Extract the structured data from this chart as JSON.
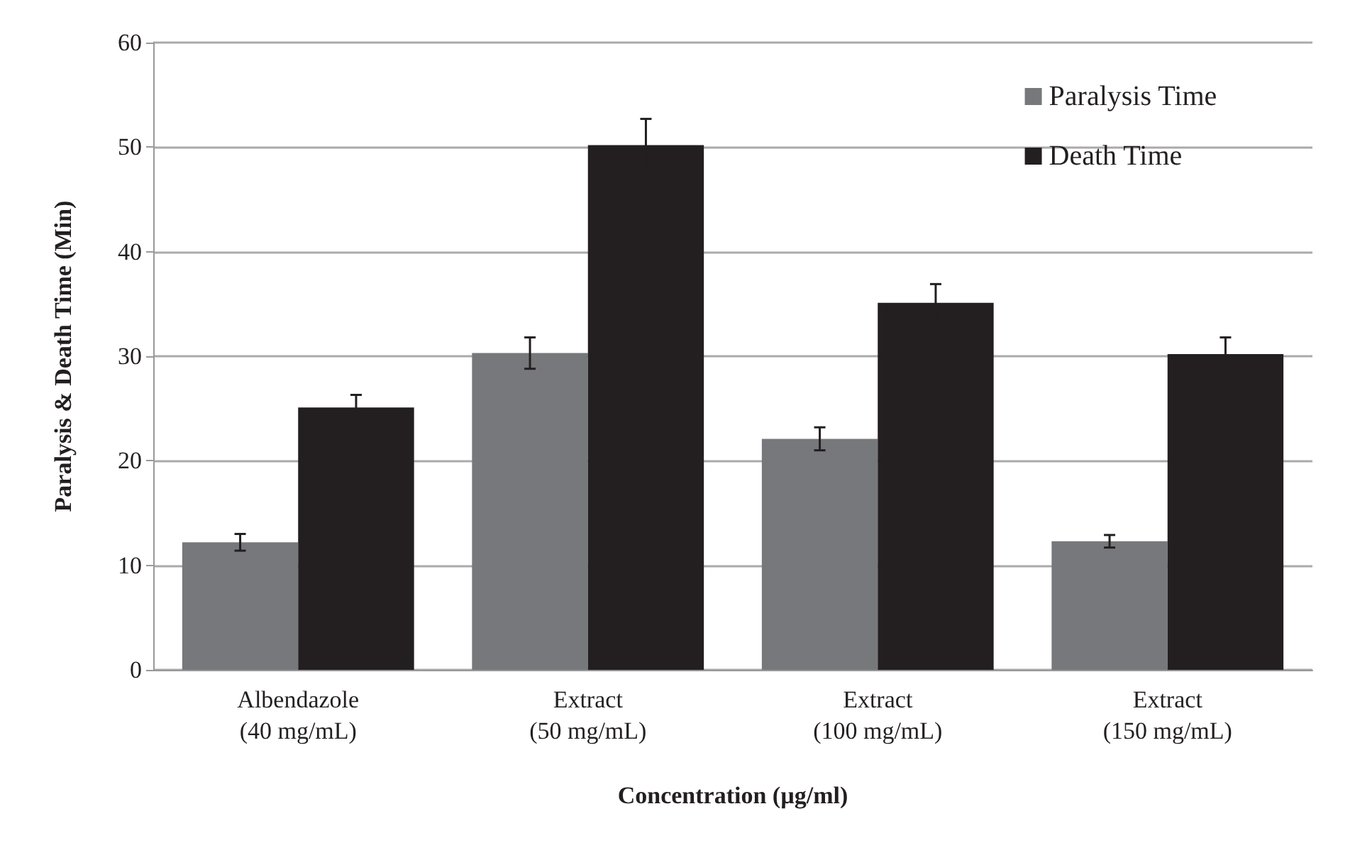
{
  "chart_data": {
    "type": "bar",
    "xlabel": "Concentration (µg/ml)",
    "ylabel": "Paralysis & Death Time (Min)",
    "categories": [
      "Albendazole\n(40 mg/mL)",
      "Extract\n(50 mg/mL)",
      "Extract\n(100 mg/mL)",
      "Extract\n(150 mg/mL)"
    ],
    "series": [
      {
        "name": "Paralysis Time",
        "color": "#77787b",
        "values": [
          12.2,
          30.3,
          22.1,
          12.3
        ],
        "errors": [
          0.8,
          1.5,
          1.1,
          0.6
        ]
      },
      {
        "name": "Death Time",
        "color": "#231f20",
        "values": [
          25.1,
          50.2,
          35.1,
          30.2
        ],
        "errors": [
          1.2,
          2.5,
          1.8,
          1.6
        ]
      }
    ],
    "ylim": [
      0,
      60
    ],
    "yticks": [
      0,
      10,
      20,
      30,
      40,
      50,
      60
    ],
    "grid": "y",
    "legend": "top right"
  }
}
